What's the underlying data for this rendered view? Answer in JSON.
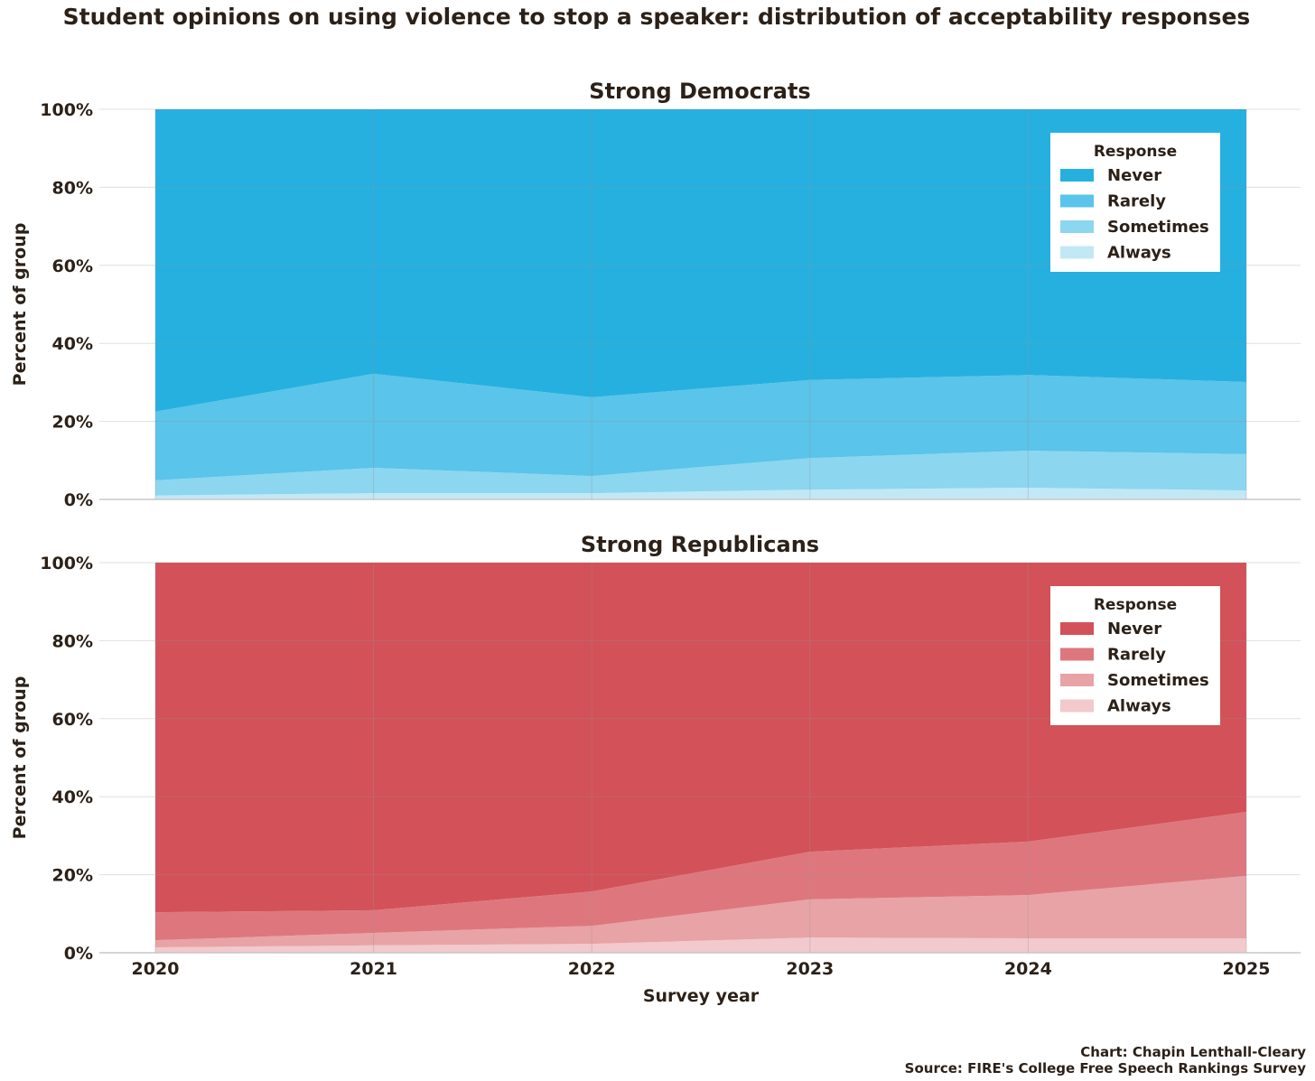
{
  "chart_data": [
    {
      "type": "area",
      "stacked": true,
      "title": "Strong Democrats",
      "xlabel": "",
      "ylabel": "Percent of group",
      "x": [
        2020,
        2021,
        2022,
        2023,
        2024,
        2025
      ],
      "ylim": [
        0,
        100
      ],
      "yticks": [
        "0%",
        "20%",
        "40%",
        "60%",
        "80%",
        "100%"
      ],
      "legend": {
        "title": "Response",
        "placement": "top-right"
      },
      "series": [
        {
          "name": "Always",
          "color": "#c2e8f6",
          "values": [
            1.0,
            1.6,
            1.6,
            2.5,
            3.0,
            2.3
          ]
        },
        {
          "name": "Sometimes",
          "color": "#8cd6f0",
          "values": [
            3.9,
            6.5,
            4.4,
            8.1,
            9.5,
            9.3
          ]
        },
        {
          "name": "Rarely",
          "color": "#5ac4ea",
          "values": [
            17.6,
            24.1,
            20.2,
            20.0,
            19.4,
            18.5
          ]
        },
        {
          "name": "Never",
          "color": "#26b0e0",
          "values": [
            77.5,
            67.8,
            73.8,
            69.4,
            68.1,
            69.9
          ]
        }
      ]
    },
    {
      "type": "area",
      "stacked": true,
      "title": "Strong Republicans",
      "xlabel": "Survey year",
      "ylabel": "Percent of group",
      "x": [
        2020,
        2021,
        2022,
        2023,
        2024,
        2025
      ],
      "ylim": [
        0,
        100
      ],
      "yticks": [
        "0%",
        "20%",
        "40%",
        "60%",
        "80%",
        "100%"
      ],
      "legend": {
        "title": "Response",
        "placement": "top-right"
      },
      "series": [
        {
          "name": "Always",
          "color": "#f2c9cc",
          "values": [
            1.4,
            1.9,
            2.3,
            3.9,
            3.7,
            3.7
          ]
        },
        {
          "name": "Sometimes",
          "color": "#e8a3a6",
          "values": [
            1.8,
            3.2,
            4.6,
            9.8,
            11.1,
            16.0
          ]
        },
        {
          "name": "Rarely",
          "color": "#de777d",
          "values": [
            7.2,
            5.8,
            8.8,
            12.2,
            13.7,
            16.4
          ]
        },
        {
          "name": "Never",
          "color": "#d35158",
          "values": [
            89.6,
            89.1,
            84.3,
            74.1,
            71.5,
            63.9
          ]
        }
      ]
    }
  ],
  "figure": {
    "title": "Student opinions on using violence to stop a speaker: distribution of acceptability responses",
    "credit": "Chart: Chapin Lenthall-Cleary",
    "source": "Source: FIRE's College Free Speech Rankings Survey"
  }
}
